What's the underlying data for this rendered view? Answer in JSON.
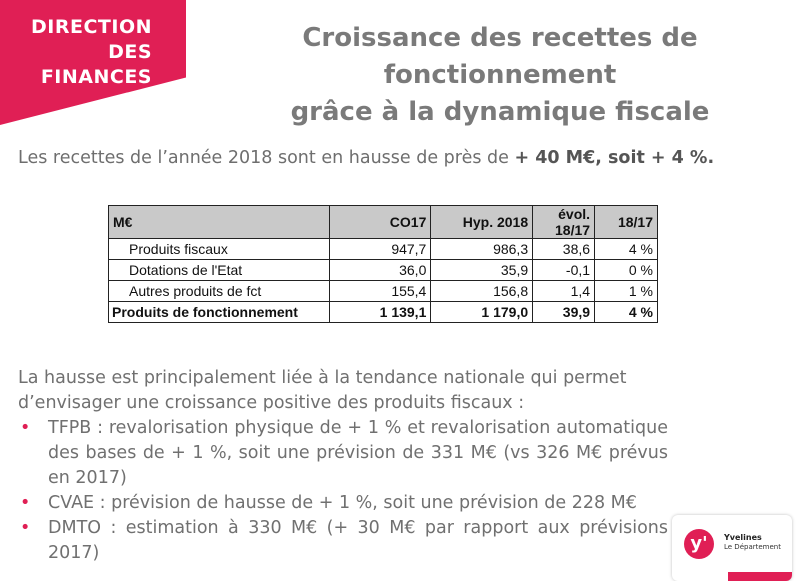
{
  "banner": {
    "line1": "DIRECTION",
    "line2": "DES",
    "line3": "FINANCES"
  },
  "title": {
    "line1": "Croissance des recettes de fonctionnement",
    "line2": "grâce à la dynamique fiscale"
  },
  "intro": {
    "text": "Les recettes de l’année 2018 sont en hausse de près de ",
    "emphasis": "+ 40 M€, soit + 4 %."
  },
  "table": {
    "headers": [
      "M€",
      "CO17",
      "Hyp. 2018",
      "évol.",
      "18/17",
      "18/17"
    ],
    "rows": [
      {
        "label": "Produits fiscaux",
        "co17": "947,7",
        "hyp2018": "986,3",
        "evol": "38,6",
        "ratio": "4 %"
      },
      {
        "label": "Dotations de l'Etat",
        "co17": "36,0",
        "hyp2018": "35,9",
        "evol": "-0,1",
        "ratio": "0 %"
      },
      {
        "label": "Autres produits de fct",
        "co17": "155,4",
        "hyp2018": "156,8",
        "evol": "1,4",
        "ratio": "1 %"
      }
    ],
    "total": {
      "label": "Produits de fonctionnement",
      "co17": "1 139,1",
      "hyp2018": "1 179,0",
      "evol": "39,9",
      "ratio": "4 %"
    }
  },
  "body": {
    "paragraph": "La hausse est principalement liée à la tendance nationale qui permet d’envisager une croissance positive des produits fiscaux :",
    "bullet_symbol": "•",
    "bullets": [
      "TFPB : revalorisation physique de + 1 % et revalorisation automatique des bases de + 1 %, soit une prévision de 331 M€ (vs 326 M€ prévus en 2017)",
      "CVAE : prévision de hausse de + 1 %, soit une prévision de 228 M€",
      "DMTO : estimation à 330 M€ (+ 30 M€ par rapport aux prévisions 2017)"
    ]
  },
  "logo": {
    "mark": "y'",
    "brand": "Yvelines",
    "subtitle": "Le Département"
  },
  "colors": {
    "accent": "#e01f55",
    "title_gray": "#7a7a7a",
    "text_gray": "#6e6e6e",
    "table_header": "#c9c9c9"
  }
}
